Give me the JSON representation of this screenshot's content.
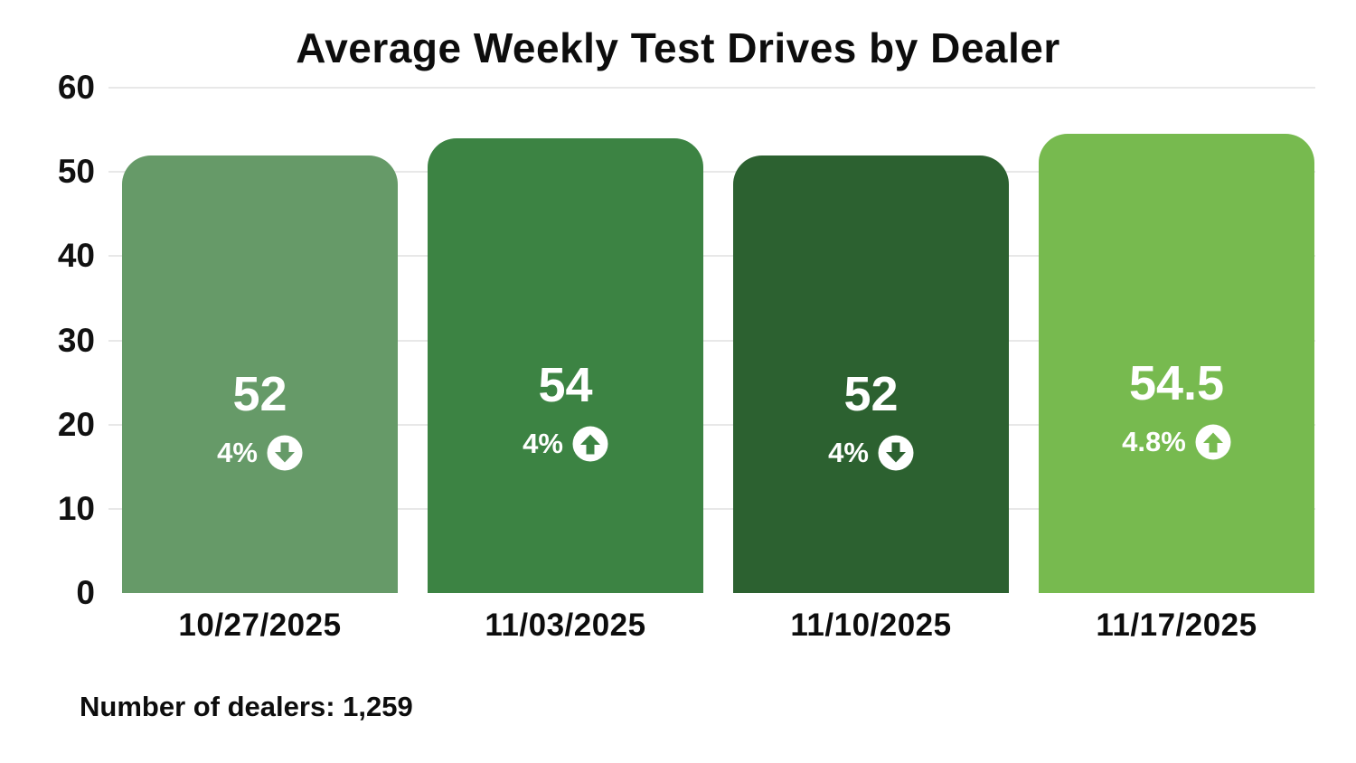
{
  "title": "Average Weekly Test Drives by Dealer",
  "footer_note": "Number of dealers: 1,259",
  "colors": {
    "background": "#ffffff",
    "axis_text": "#111111",
    "gridline": "#e8e8e8",
    "label_on_bar": "#ffffff",
    "bars": [
      "#669A68",
      "#3C8343",
      "#2C6130",
      "#77BA4F"
    ]
  },
  "chart_data": {
    "type": "bar",
    "title": "Average Weekly Test Drives by Dealer",
    "categories": [
      "10/27/2025",
      "11/03/2025",
      "11/10/2025",
      "11/17/2025"
    ],
    "values": [
      52,
      54,
      52,
      54.5
    ],
    "value_labels": [
      "52",
      "54",
      "52",
      "54.5"
    ],
    "change_labels": [
      "4%",
      "4%",
      "4%",
      "4.8%"
    ],
    "change_directions": [
      "down",
      "up",
      "down",
      "up"
    ],
    "bar_colors": [
      "#669A68",
      "#3C8343",
      "#2C6130",
      "#77BA4F"
    ],
    "xlabel": "",
    "ylabel": "",
    "ylim": [
      0,
      60
    ],
    "yticks": [
      0,
      10,
      20,
      30,
      40,
      50,
      60
    ],
    "ytick_labels": [
      "0",
      "10",
      "20",
      "30",
      "40",
      "50",
      "60"
    ],
    "grid": true,
    "legend": false,
    "annotation": "Number of dealers: 1,259"
  }
}
